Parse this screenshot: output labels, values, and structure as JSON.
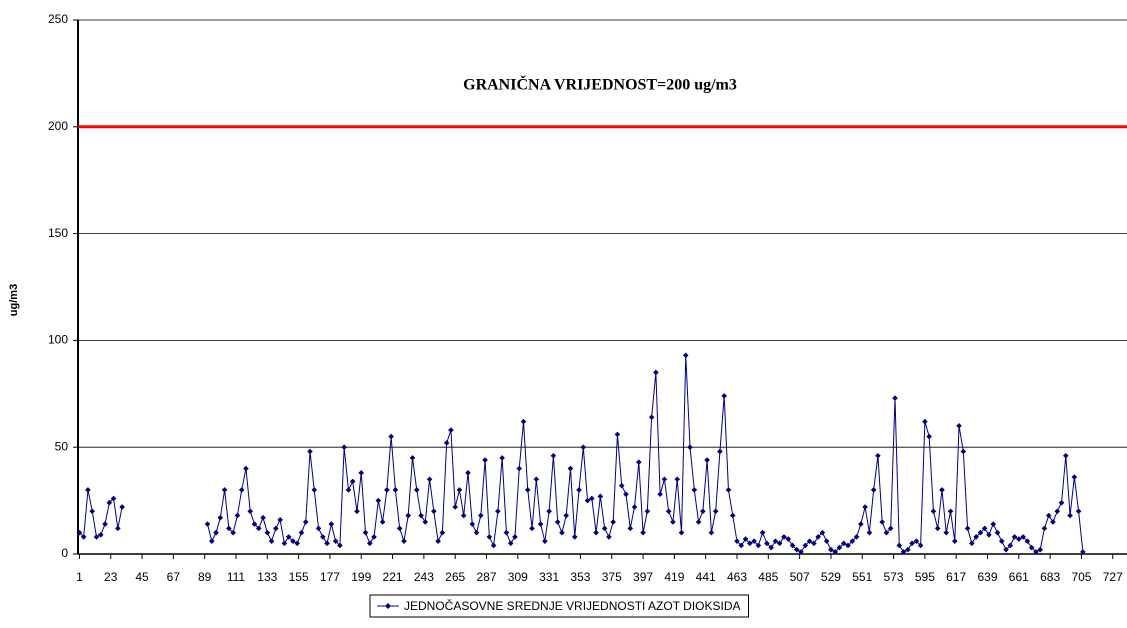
{
  "chart_data": {
    "type": "line",
    "annotation": "GRANIČNA VRIJEDNOST=200 ug/m3",
    "ylabel": "ug/m3",
    "threshold": {
      "value": 200,
      "color": "#ff0000"
    },
    "xlim": [
      0,
      737
    ],
    "xticks": [
      1,
      23,
      45,
      67,
      89,
      111,
      133,
      155,
      177,
      199,
      221,
      243,
      265,
      287,
      309,
      331,
      353,
      375,
      397,
      419,
      441,
      463,
      485,
      507,
      529,
      551,
      573,
      595,
      617,
      639,
      661,
      683,
      705,
      727
    ],
    "ylim": [
      0,
      250
    ],
    "yticks": [
      0,
      50,
      100,
      150,
      200,
      250
    ],
    "grid": true,
    "legend": "bottom",
    "x": [
      1,
      4,
      7,
      10,
      13,
      16,
      19,
      22,
      25,
      28,
      31,
      34,
      37,
      40,
      43,
      46,
      49,
      52,
      55,
      58,
      61,
      64,
      67,
      70,
      73,
      76,
      79,
      82,
      85,
      88,
      91,
      94,
      97,
      100,
      103,
      106,
      109,
      112,
      115,
      118,
      121,
      124,
      127,
      130,
      133,
      136,
      139,
      142,
      145,
      148,
      151,
      154,
      157,
      160,
      163,
      166,
      169,
      172,
      175,
      178,
      181,
      184,
      187,
      190,
      193,
      196,
      199,
      202,
      205,
      208,
      211,
      214,
      217,
      220,
      223,
      226,
      229,
      232,
      235,
      238,
      241,
      244,
      247,
      250,
      253,
      256,
      259,
      262,
      265,
      268,
      271,
      274,
      277,
      280,
      283,
      286,
      289,
      292,
      295,
      298,
      301,
      304,
      307,
      310,
      313,
      316,
      319,
      322,
      325,
      328,
      331,
      334,
      337,
      340,
      343,
      346,
      349,
      352,
      355,
      358,
      361,
      364,
      367,
      370,
      373,
      376,
      379,
      382,
      385,
      388,
      391,
      394,
      397,
      400,
      403,
      406,
      409,
      412,
      415,
      418,
      421,
      424,
      427,
      430,
      433,
      436,
      439,
      442,
      445,
      448,
      451,
      454,
      457,
      460,
      463,
      466,
      469,
      472,
      475,
      478,
      481,
      484,
      487,
      490,
      493,
      496,
      499,
      502,
      505,
      508,
      511,
      514,
      517,
      520,
      523,
      526,
      529,
      532,
      535,
      538,
      541,
      544,
      547,
      550,
      553,
      556,
      559,
      562,
      565,
      568,
      571,
      574,
      577,
      580,
      583,
      586,
      589,
      592,
      595,
      598,
      601,
      604,
      607,
      610,
      613,
      616,
      619,
      622,
      625,
      628,
      631,
      634,
      637,
      640,
      643,
      646,
      649,
      652,
      655,
      658,
      661,
      664,
      667,
      670,
      673,
      676,
      679,
      682,
      685,
      688,
      691,
      694,
      697,
      700,
      703,
      706
    ],
    "series": [
      {
        "name": "JEDNOČASOVNE SREDNJE VRIJEDNOSTI AZOT DIOKSIDA",
        "color": "#000080",
        "values": [
          10,
          8,
          30,
          20,
          8,
          9,
          14,
          24,
          26,
          12,
          22,
          null,
          null,
          null,
          null,
          null,
          null,
          null,
          null,
          null,
          null,
          null,
          null,
          null,
          null,
          null,
          null,
          null,
          null,
          null,
          14,
          6,
          10,
          17,
          30,
          12,
          10,
          18,
          30,
          40,
          20,
          14,
          12,
          17,
          10,
          6,
          12,
          16,
          5,
          8,
          6,
          5,
          10,
          15,
          48,
          30,
          12,
          8,
          5,
          14,
          6,
          4,
          50,
          30,
          34,
          20,
          38,
          10,
          5,
          8,
          25,
          15,
          30,
          55,
          30,
          12,
          6,
          18,
          45,
          30,
          18,
          15,
          35,
          20,
          6,
          10,
          52,
          58,
          22,
          30,
          18,
          38,
          14,
          10,
          18,
          44,
          8,
          4,
          20,
          45,
          10,
          5,
          8,
          40,
          62,
          30,
          12,
          35,
          14,
          6,
          20,
          46,
          15,
          10,
          18,
          40,
          8,
          30,
          50,
          25,
          26,
          10,
          27,
          12,
          8,
          15,
          56,
          32,
          28,
          12,
          22,
          43,
          10,
          20,
          64,
          85,
          28,
          35,
          20,
          15,
          35,
          10,
          93,
          50,
          30,
          15,
          20,
          44,
          10,
          20,
          48,
          74,
          30,
          18,
          6,
          4,
          7,
          5,
          6,
          4,
          10,
          5,
          3,
          6,
          5,
          8,
          7,
          4,
          2,
          1,
          4,
          6,
          5,
          8,
          10,
          6,
          2,
          1,
          3,
          5,
          4,
          6,
          8,
          14,
          22,
          10,
          30,
          46,
          15,
          10,
          12,
          73,
          4,
          1,
          2,
          5,
          6,
          4,
          62,
          55,
          20,
          12,
          30,
          10,
          20,
          6,
          60,
          48,
          12,
          5,
          8,
          10,
          12,
          9,
          14,
          10,
          6,
          2,
          4,
          8,
          7,
          8,
          6,
          3,
          1,
          2,
          12,
          18,
          15,
          20,
          24,
          46,
          18,
          36,
          20,
          1
        ]
      }
    ]
  }
}
